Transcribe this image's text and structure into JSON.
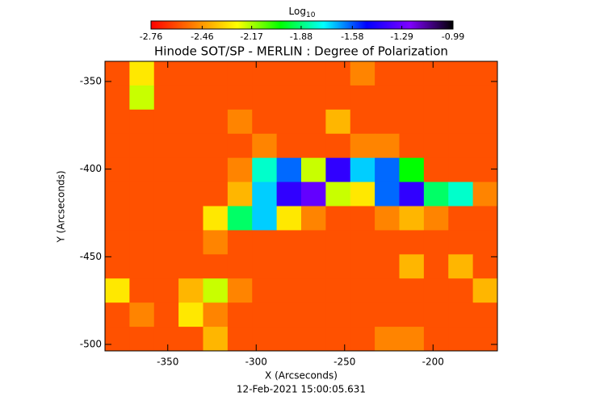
{
  "chart_data": {
    "type": "heatmap",
    "title": "Hinode SOT/SP - MERLIN : Degree of Polarization",
    "xlabel": "X (Arcseconds)",
    "ylabel": "Y (Arcseconds)",
    "footer": "12-Feb-2021 15:00:05.631",
    "colorbar_label": "Log",
    "colorbar_label_sub": "10",
    "xlim": [
      -385.5,
      -163.6
    ],
    "ylim": [
      -503.7,
      -338.5
    ],
    "xticks": [
      -350,
      -300,
      -250,
      -200
    ],
    "yticks": [
      -350,
      -400,
      -450,
      -500
    ],
    "clim": [
      -2.76,
      -0.99
    ],
    "cticks": [
      -2.76,
      -2.46,
      -2.17,
      -1.88,
      -1.58,
      -1.29,
      -0.99
    ],
    "colormap": [
      "#ff0000",
      "#ff8000",
      "#ffff00",
      "#00ff00",
      "#00ffff",
      "#0000ff",
      "#8000ff",
      "#000000"
    ],
    "z": [
      [
        -2.6,
        -2.3,
        -2.6,
        -2.6,
        -2.6,
        -2.6,
        -2.6,
        -2.6,
        -2.6,
        -2.6,
        -2.5,
        -2.6,
        -2.6,
        -2.6,
        -2.6,
        -2.6
      ],
      [
        -2.6,
        -2.2,
        -2.6,
        -2.6,
        -2.6,
        -2.6,
        -2.6,
        -2.6,
        -2.6,
        -2.6,
        -2.6,
        -2.6,
        -2.6,
        -2.6,
        -2.6,
        -2.6
      ],
      [
        -2.6,
        -2.6,
        -2.6,
        -2.6,
        -2.6,
        -2.5,
        -2.6,
        -2.6,
        -2.6,
        -2.4,
        -2.6,
        -2.6,
        -2.6,
        -2.6,
        -2.6,
        -2.6
      ],
      [
        -2.6,
        -2.6,
        -2.6,
        -2.6,
        -2.6,
        -2.6,
        -2.5,
        -2.6,
        -2.6,
        -2.6,
        -2.5,
        -2.5,
        -2.6,
        -2.6,
        -2.6,
        -2.6
      ],
      [
        -2.6,
        -2.6,
        -2.6,
        -2.6,
        -2.6,
        -2.5,
        -1.8,
        -1.6,
        -2.2,
        -1.4,
        -1.7,
        -1.6,
        -2.0,
        -2.6,
        -2.6,
        -2.6
      ],
      [
        -2.6,
        -2.6,
        -2.6,
        -2.6,
        -2.6,
        -2.4,
        -1.7,
        -1.4,
        -1.3,
        -2.2,
        -2.3,
        -1.6,
        -1.4,
        -1.9,
        -1.8,
        -2.5
      ],
      [
        -2.6,
        -2.6,
        -2.6,
        -2.6,
        -2.3,
        -1.9,
        -1.7,
        -2.3,
        -2.5,
        -2.6,
        -2.6,
        -2.5,
        -2.4,
        -2.5,
        -2.6,
        -2.6
      ],
      [
        -2.6,
        -2.6,
        -2.6,
        -2.6,
        -2.5,
        -2.6,
        -2.6,
        -2.6,
        -2.6,
        -2.6,
        -2.6,
        -2.6,
        -2.6,
        -2.6,
        -2.6,
        -2.6
      ],
      [
        -2.6,
        -2.6,
        -2.6,
        -2.6,
        -2.6,
        -2.6,
        -2.6,
        -2.6,
        -2.6,
        -2.6,
        -2.6,
        -2.6,
        -2.4,
        -2.6,
        -2.4,
        -2.6
      ],
      [
        -2.3,
        -2.6,
        -2.6,
        -2.4,
        -2.2,
        -2.5,
        -2.6,
        -2.6,
        -2.6,
        -2.6,
        -2.6,
        -2.6,
        -2.6,
        -2.6,
        -2.6,
        -2.4
      ],
      [
        -2.6,
        -2.5,
        -2.6,
        -2.3,
        -2.5,
        -2.6,
        -2.6,
        -2.6,
        -2.6,
        -2.6,
        -2.6,
        -2.6,
        -2.6,
        -2.6,
        -2.6,
        -2.6
      ],
      [
        -2.6,
        -2.6,
        -2.6,
        -2.6,
        -2.4,
        -2.6,
        -2.6,
        -2.6,
        -2.6,
        -2.6,
        -2.6,
        -2.5,
        -2.5,
        -2.6,
        -2.6,
        -2.6
      ]
    ]
  }
}
